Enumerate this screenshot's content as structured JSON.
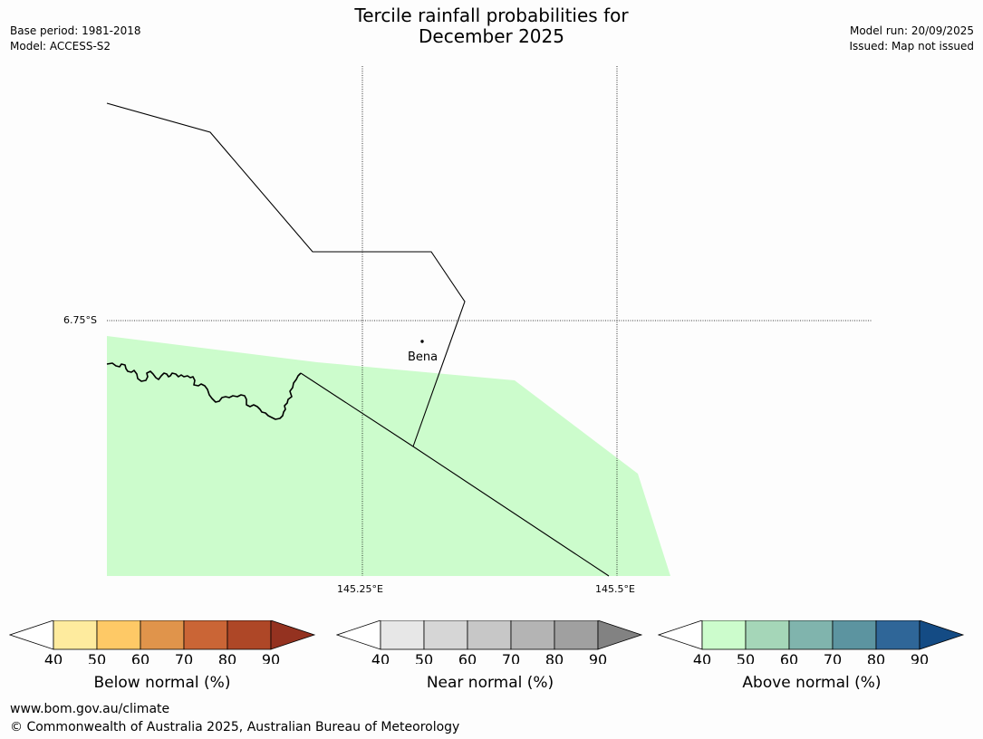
{
  "header": {
    "title_line1": "Tercile rainfall probabilities for",
    "title_line2": "December 2025",
    "base_period": "Base period: 1981-2018",
    "model": "Model: ACCESS-S2",
    "model_run": "Model run: 20/09/2025",
    "issued": "Issued: Map not issued"
  },
  "map": {
    "lat_label": "6.75°S",
    "lon_labels": [
      "145.25°E",
      "145.5°E"
    ],
    "place": "Bena",
    "shading_color": "#ccfccc"
  },
  "colorbars": [
    {
      "label": "Below normal (%)",
      "ticks": [
        "40",
        "50",
        "60",
        "70",
        "80",
        "90"
      ],
      "low_color": "#ffffff",
      "colors": [
        "#feeb9e",
        "#fec966",
        "#e0944b",
        "#ca6536",
        "#ae4727"
      ],
      "high_color": "#943220"
    },
    {
      "label": "Near normal (%)",
      "ticks": [
        "40",
        "50",
        "60",
        "70",
        "80",
        "90"
      ],
      "low_color": "#ffffff",
      "colors": [
        "#e7e7e7",
        "#d6d6d6",
        "#c7c7c7",
        "#b4b4b4",
        "#a0a0a0"
      ],
      "high_color": "#828282"
    },
    {
      "label": "Above normal (%)",
      "ticks": [
        "40",
        "50",
        "60",
        "70",
        "80",
        "90"
      ],
      "low_color": "#ffffff",
      "colors": [
        "#ccfccc",
        "#a5d6b8",
        "#80b4ad",
        "#5c94a0",
        "#2f6698"
      ],
      "high_color": "#144b84"
    }
  ],
  "footer": {
    "website": "www.bom.gov.au/climate",
    "copyright": "© Commonwealth of Australia 2025, Australian Bureau of Meteorology"
  }
}
